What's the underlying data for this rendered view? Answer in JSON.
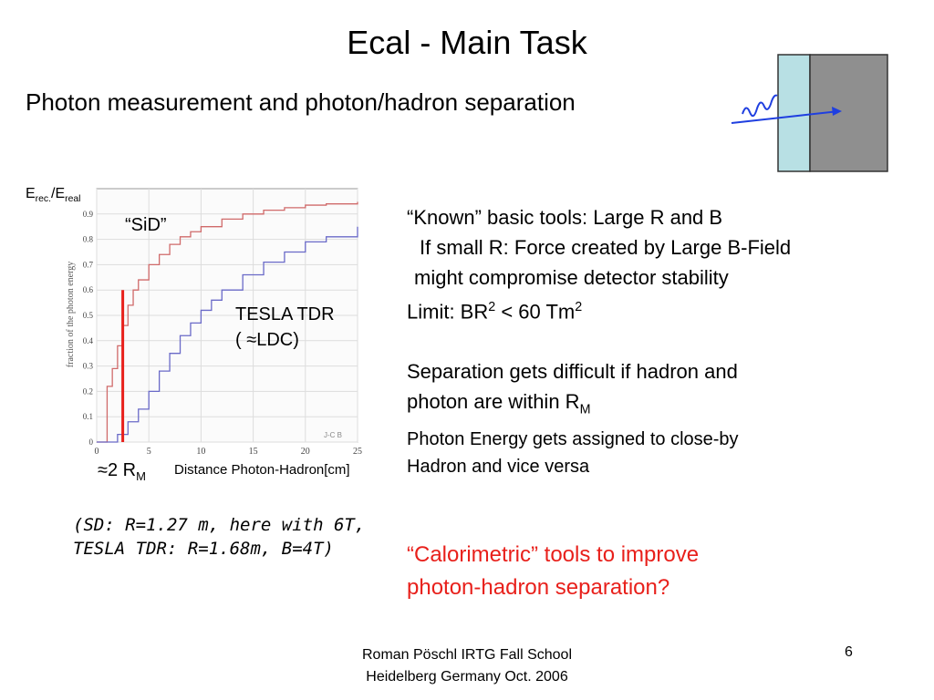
{
  "slide": {
    "title": "Ecal - Main Task",
    "subtitle": "Photon measurement and photon/hadron separation"
  },
  "plot": {
    "ylabel_main": "E",
    "ylabel_sub1": "rec.",
    "ylabel_mid": "/E",
    "ylabel_sub2": "real",
    "sid_label": "“SiD”",
    "tesla_line1": "TESLA TDR",
    "tesla_line2": "( ≈LDC)",
    "rm_label": "≈2 R",
    "rm_sub": "M",
    "xlabel": "Distance Photon-Hadron[cm]",
    "inner_ylabel": "fraction of the photon energy",
    "watermark": "J-C B"
  },
  "chart_data": {
    "type": "line",
    "xlim": [
      0,
      25
    ],
    "ylim": [
      0,
      1
    ],
    "x_ticks": [
      "0",
      "5",
      "10",
      "15",
      "20",
      "25"
    ],
    "y_ticks": [
      "0",
      "0.1",
      "0.2",
      "0.3",
      "0.4",
      "0.5",
      "0.6",
      "0.7",
      "0.8",
      "0.9"
    ],
    "grid": true,
    "series": [
      {
        "color": "#d06a6a",
        "x": [
          0,
          1,
          1.5,
          2,
          2.5,
          3,
          3.5,
          4,
          5,
          6,
          7,
          8,
          9,
          10,
          12,
          14,
          16,
          18,
          20,
          22,
          25
        ],
        "y": [
          0,
          0.22,
          0.29,
          0.38,
          0.46,
          0.54,
          0.6,
          0.64,
          0.7,
          0.74,
          0.78,
          0.81,
          0.83,
          0.85,
          0.88,
          0.9,
          0.915,
          0.925,
          0.935,
          0.94,
          0.948
        ]
      },
      {
        "color": "#6a6ac8",
        "x": [
          0,
          2,
          3,
          4,
          5,
          6,
          7,
          8,
          9,
          10,
          11,
          12,
          14,
          16,
          18,
          20,
          22,
          25
        ],
        "y": [
          0,
          0.03,
          0.08,
          0.13,
          0.2,
          0.28,
          0.35,
          0.42,
          0.47,
          0.52,
          0.56,
          0.6,
          0.66,
          0.71,
          0.75,
          0.79,
          0.81,
          0.85
        ]
      }
    ],
    "marker_x": 2.5,
    "marker_y": 0.6,
    "marker_color": "#e8201b"
  },
  "bullets": {
    "line1": "“Known” basic tools: Large R and B",
    "line2": "If small R: Force created by Large B-Field",
    "line3": "might compromise detector stability",
    "line4_pre": "Limit: BR",
    "line4_sup1": "2",
    "line4_mid": " < 60 Tm",
    "line4_sup2": "2",
    "line5": "Separation gets difficult if hadron and",
    "line6_pre": "photon are within R",
    "line6_sub": "M",
    "line7": "Photon Energy gets assigned to close-by",
    "line8": "Hadron and vice versa"
  },
  "note": {
    "line1": "(SD: R=1.27 m, here with 6T,",
    "line2": "TESLA TDR: R=1.68m, B=4T)"
  },
  "question": {
    "line1": "“Calorimetric” tools to improve",
    "line2": "photon-hadron separation?"
  },
  "footer": {
    "line1": "Roman Pöschl IRTG Fall School",
    "line2": "Heidelberg Germany Oct. 2006",
    "page": "6"
  },
  "colors": {
    "detector_front": "#b8e0e4",
    "detector_back": "#8f8f8f",
    "arrow": "#1f3fe0"
  }
}
